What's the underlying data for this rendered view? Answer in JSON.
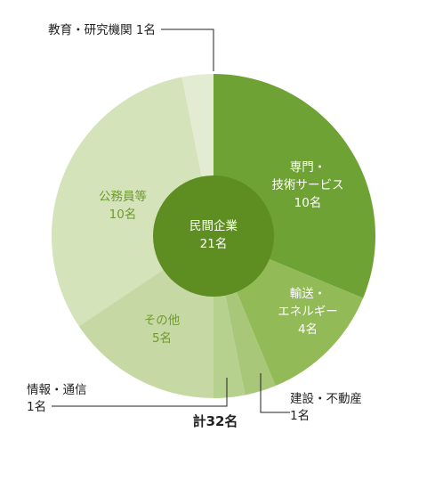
{
  "chart_data": {
    "type": "pie",
    "total_label": "計32名",
    "center": {
      "line1": "民間企業",
      "line2": "21名",
      "color": "#5e8d21"
    },
    "slices": [
      {
        "key": "professional",
        "line1": "専門・",
        "line2": "技術サービス",
        "line3": "10名",
        "value": 10,
        "color": "#6fa234"
      },
      {
        "key": "transport",
        "line1": "輸送・",
        "line2": "エネルギー",
        "line3": "4名",
        "value": 4,
        "color": "#92bb57"
      },
      {
        "key": "construction",
        "line1": "建設・不動産",
        "line2": "1名",
        "value": 1,
        "color": "#a8c778"
      },
      {
        "key": "info",
        "line1": "情報・通信",
        "line2": "1名",
        "value": 1,
        "color": "#b6d08e"
      },
      {
        "key": "other",
        "line1": "その他",
        "line2": "5名",
        "value": 5,
        "color": "#c6d9a4"
      },
      {
        "key": "public",
        "line1": "公務員等",
        "line2": "10名",
        "value": 10,
        "color": "#d5e3bb"
      },
      {
        "key": "education",
        "line1": "教育・研究機関 1名",
        "value": 1,
        "color": "#e3ecd2"
      }
    ]
  }
}
